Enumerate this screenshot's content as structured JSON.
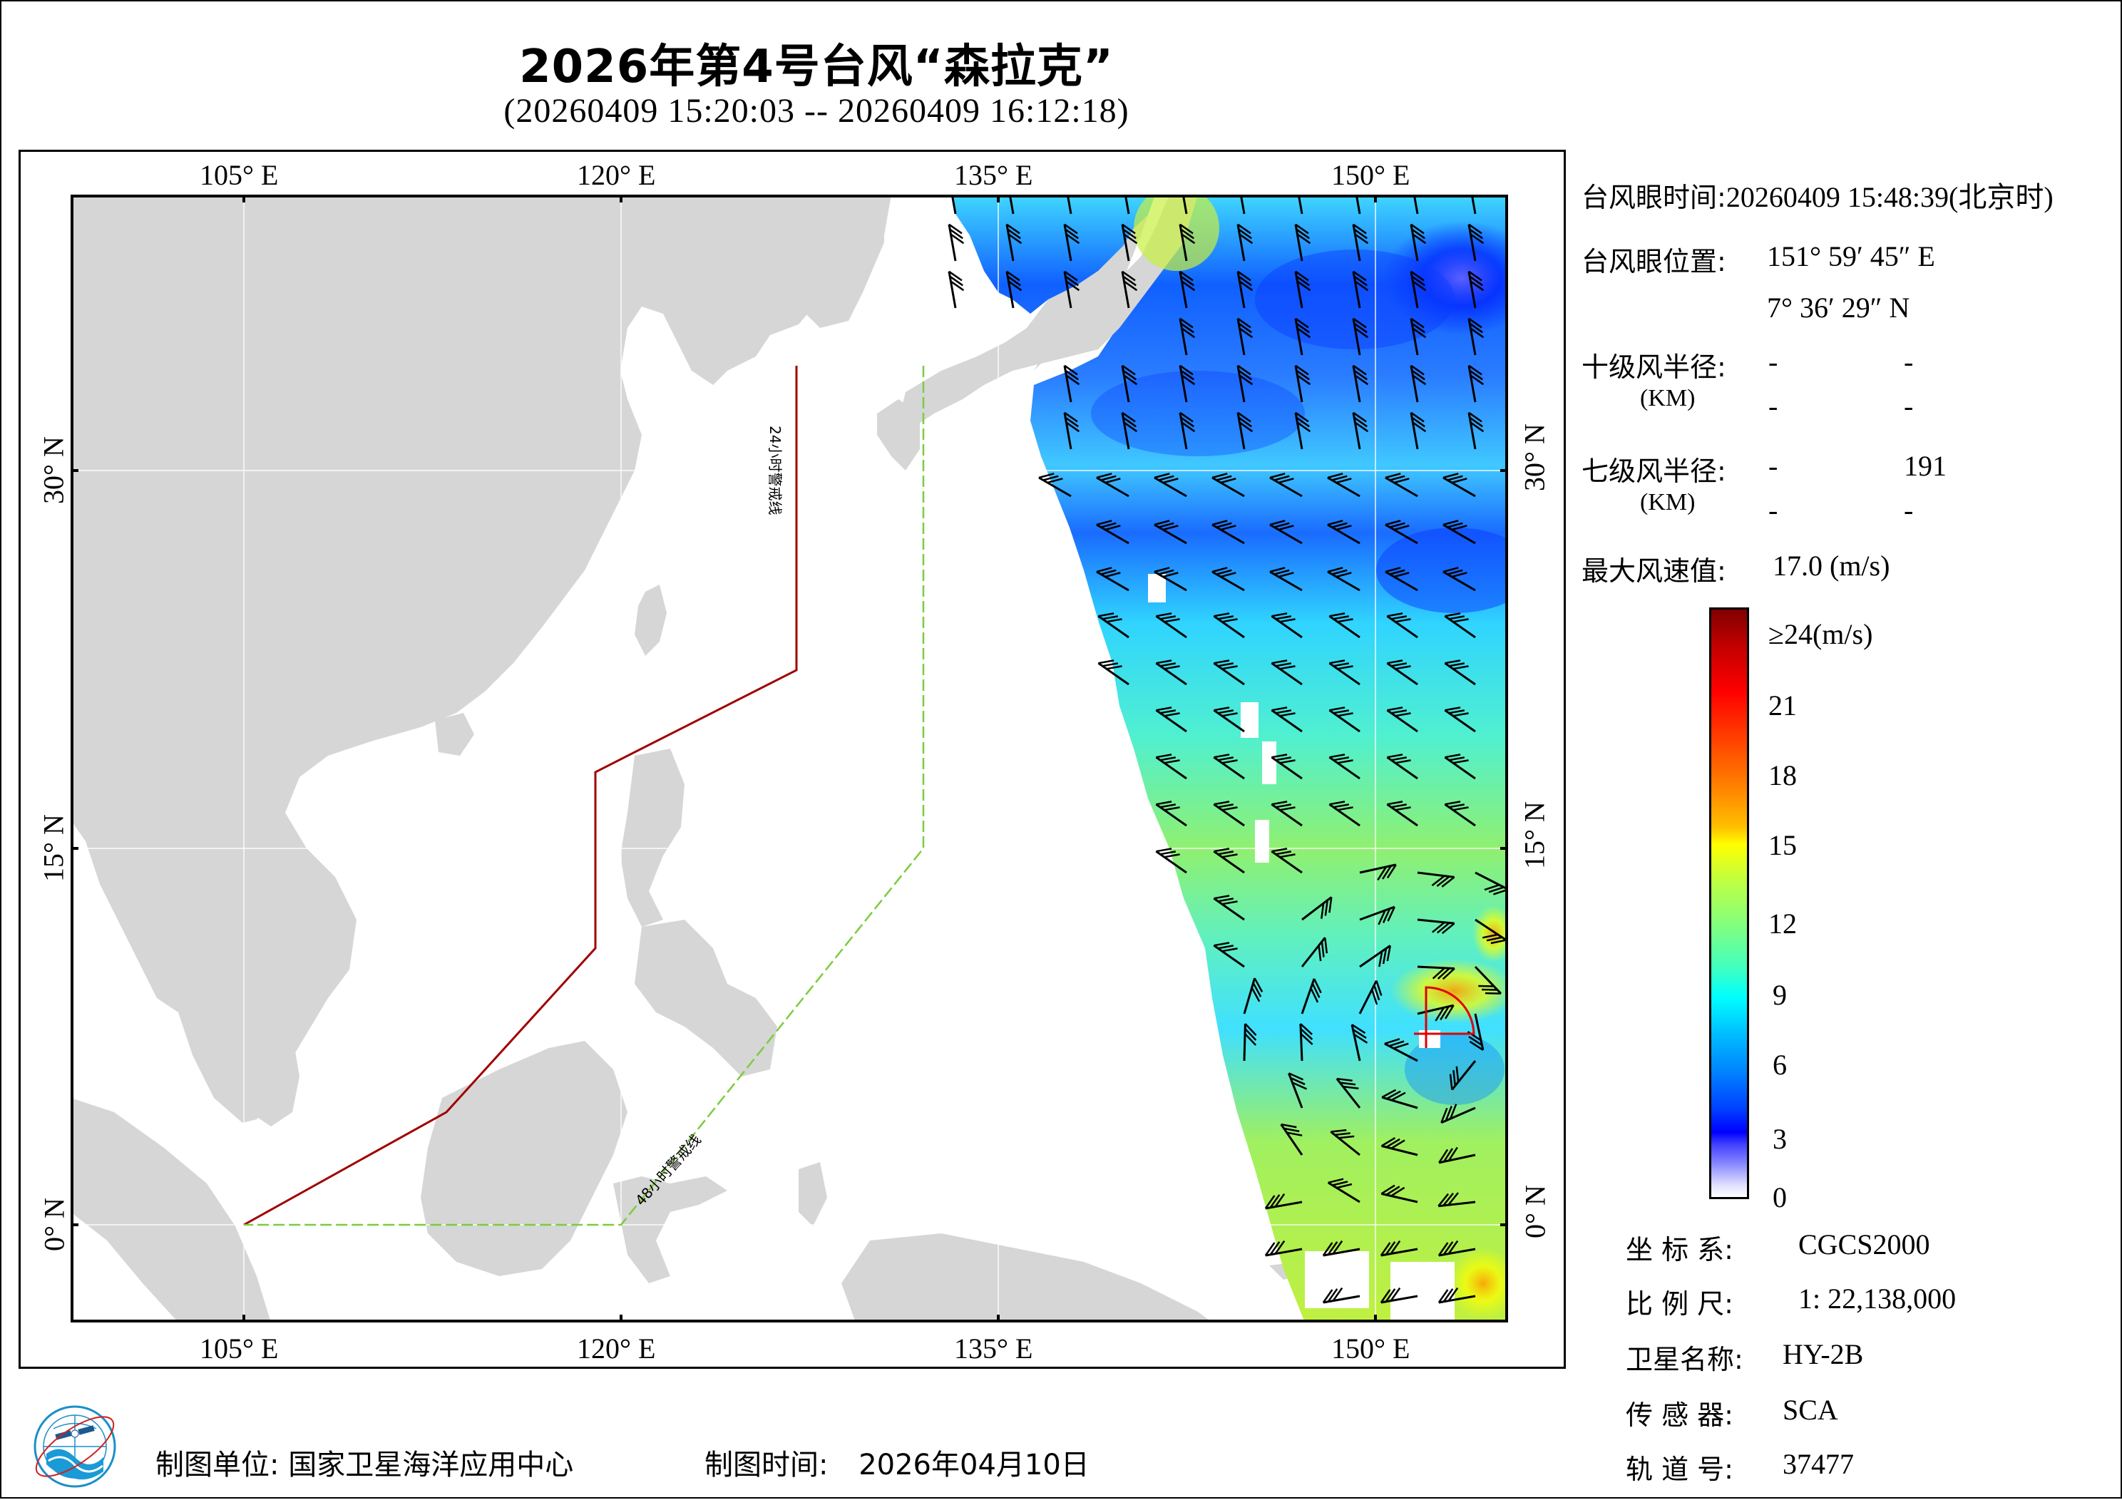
{
  "header": {
    "title": "2026年第4号台风“森拉克”",
    "subtitle": "(20260409 15:20:03 -- 20260409 16:12:18)"
  },
  "map": {
    "top_lon_labels": [
      "105° E",
      "120° E",
      "135° E",
      "150° E"
    ],
    "bottom_lon_labels": [
      "105° E",
      "120° E",
      "135° E",
      "150° E"
    ],
    "left_lat_labels": [
      "30° N",
      "15° N",
      "0° N"
    ],
    "right_lat_labels": [
      "30° N",
      "15° N",
      "0° N"
    ],
    "warning_24h_label": "24小时警戒线",
    "warning_48h_label": "48小时警戒线",
    "colors": {
      "land": "#d6d6d6",
      "gridline": "#ffffff",
      "warning_24h": "#a00000",
      "warning_48h": "#7ccc3c",
      "typhoon_marker": "#e00000"
    }
  },
  "typhoon_info": {
    "eye_time_label": "台风眼时间:",
    "eye_time_value": "20260409 15:48:39(北京时)",
    "eye_position_label": "台风眼位置:",
    "eye_lon": "151° 59′ 45″ E",
    "eye_lat": "7° 36′ 29″ N",
    "r10_label": "十级风半径:",
    "r10_unit": "(KM)",
    "r10_values": [
      "-",
      "-",
      "-",
      "-"
    ],
    "r7_label": "七级风半径:",
    "r7_unit": "(KM)",
    "r7_values": [
      "-",
      "191",
      "-",
      "-"
    ],
    "max_wind_label": "最大风速值:",
    "max_wind_value": "17.0  (m/s)"
  },
  "colorbar": {
    "top_label": "≥24(m/s)",
    "ticks": [
      "21",
      "18",
      "15",
      "12",
      "9",
      "6",
      "3",
      "0"
    ]
  },
  "metadata": {
    "crs_label": "坐 标 系:",
    "crs_value": "CGCS2000",
    "scale_label": "比 例 尺:",
    "scale_value": "1: 22,138,000",
    "satellite_label": "卫星名称:",
    "satellite_value": "HY-2B",
    "sensor_label": "传 感 器:",
    "sensor_value": "SCA",
    "orbit_label": "轨 道 号:",
    "orbit_value": "37477"
  },
  "footer": {
    "producer_label": "制图单位:",
    "producer_value": "国家卫星海洋应用中心",
    "date_label": "制图时间:",
    "date_value": "2026年04月10日"
  }
}
